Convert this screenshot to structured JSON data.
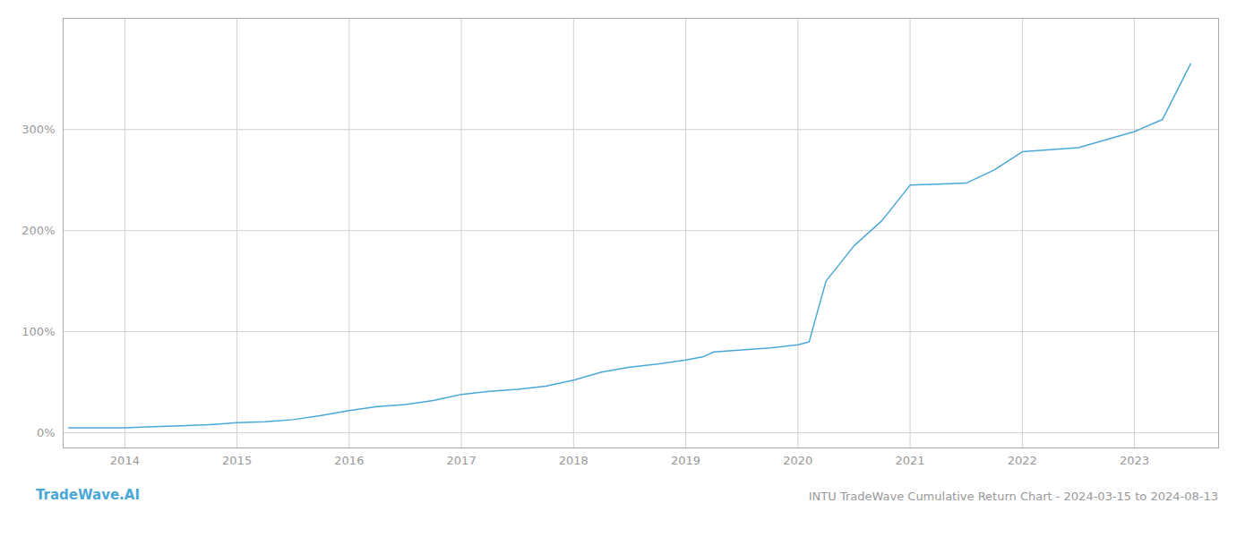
{
  "chart_data": {
    "type": "line",
    "title": "INTU TradeWave Cumulative Return Chart - 2024-03-15 to 2024-08-13",
    "annotations": [
      "TradeWave.AI"
    ],
    "color": "#4aa8d8",
    "x": [
      2013.5,
      2013.7,
      2013.9,
      2014.0,
      2014.25,
      2014.5,
      2014.75,
      2015.0,
      2015.25,
      2015.5,
      2015.75,
      2016.0,
      2016.25,
      2016.5,
      2016.75,
      2017.0,
      2017.25,
      2017.5,
      2017.75,
      2018.0,
      2018.25,
      2018.5,
      2018.75,
      2019.0,
      2019.15,
      2019.25,
      2019.5,
      2019.75,
      2020.0,
      2020.1,
      2020.25,
      2020.5,
      2020.75,
      2021.0,
      2021.25,
      2021.5,
      2021.75,
      2022.0,
      2022.25,
      2022.5,
      2022.75,
      2023.0,
      2023.25,
      2023.5
    ],
    "values": [
      5,
      5,
      5,
      5,
      6,
      7,
      8,
      10,
      11,
      13,
      17,
      22,
      26,
      28,
      32,
      38,
      41,
      43,
      46,
      52,
      60,
      65,
      68,
      72,
      75,
      80,
      82,
      84,
      87,
      90,
      150,
      185,
      210,
      245,
      246,
      247,
      260,
      278,
      280,
      282,
      290,
      298,
      310,
      365
    ],
    "xlim": [
      2013.45,
      2023.75
    ],
    "xticks": [
      2014,
      2015,
      2016,
      2017,
      2018,
      2019,
      2020,
      2021,
      2022,
      2023
    ],
    "ylim": [
      -15,
      410
    ],
    "yticks": [
      {
        "value": 0,
        "label": "0%"
      },
      {
        "value": 100,
        "label": "100%"
      },
      {
        "value": 200,
        "label": "200%"
      },
      {
        "value": 300,
        "label": "300%"
      }
    ],
    "grid": true
  }
}
